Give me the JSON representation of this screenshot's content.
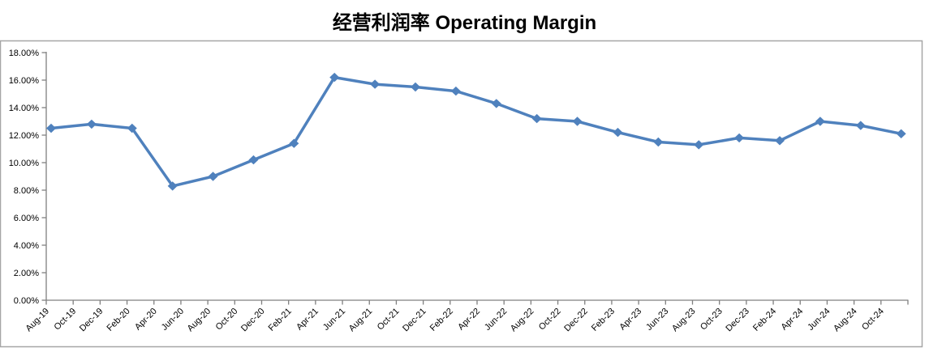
{
  "title": "经营利润率 Operating Margin",
  "colors": {
    "line": "#4F81BD",
    "marker": "#4F81BD",
    "axis": "#808080",
    "frame": "#A6A6A6",
    "text": "#000000",
    "background": "#FFFFFF"
  },
  "chart_data": {
    "type": "line",
    "title": "经营利润率 Operating Margin",
    "series_name": "Operating Margin",
    "points": [
      {
        "x": "Aug-19",
        "y": 12.5
      },
      {
        "x": "Nov-19",
        "y": 12.8
      },
      {
        "x": "Feb-20",
        "y": 12.5
      },
      {
        "x": "May-20",
        "y": 8.3
      },
      {
        "x": "Aug-20",
        "y": 9.0
      },
      {
        "x": "Nov-20",
        "y": 10.2
      },
      {
        "x": "Feb-21",
        "y": 11.4
      },
      {
        "x": "May-21",
        "y": 16.2
      },
      {
        "x": "Aug-21",
        "y": 15.7
      },
      {
        "x": "Nov-21",
        "y": 15.5
      },
      {
        "x": "Feb-22",
        "y": 15.2
      },
      {
        "x": "May-22",
        "y": 14.3
      },
      {
        "x": "Aug-22",
        "y": 13.2
      },
      {
        "x": "Nov-22",
        "y": 13.0
      },
      {
        "x": "Feb-23",
        "y": 12.2
      },
      {
        "x": "May-23",
        "y": 11.5
      },
      {
        "x": "Aug-23",
        "y": 11.3
      },
      {
        "x": "Nov-23",
        "y": 11.8
      },
      {
        "x": "Feb-24",
        "y": 11.6
      },
      {
        "x": "May-24",
        "y": 13.0
      },
      {
        "x": "Aug-24",
        "y": 12.7
      },
      {
        "x": "Nov-24",
        "y": 12.1
      }
    ],
    "values": [
      12.5,
      12.8,
      12.5,
      8.3,
      9.0,
      10.2,
      11.4,
      16.2,
      15.7,
      15.5,
      15.2,
      14.3,
      13.2,
      13.0,
      12.2,
      11.5,
      11.3,
      11.8,
      11.6,
      13.0,
      12.7,
      12.1
    ],
    "x_tick_labels": [
      "Aug-19",
      "Oct-19",
      "Dec-19",
      "Feb-20",
      "Apr-20",
      "Jun-20",
      "Aug-20",
      "Oct-20",
      "Dec-20",
      "Feb-21",
      "Apr-21",
      "Jun-21",
      "Aug-21",
      "Oct-21",
      "Dec-21",
      "Feb-22",
      "Apr-22",
      "Jun-22",
      "Aug-22",
      "Oct-22",
      "Dec-22",
      "Feb-23",
      "Apr-23",
      "Jun-23",
      "Aug-23",
      "Oct-23",
      "Dec-23",
      "Feb-24",
      "Apr-24",
      "Jun-24",
      "Aug-24",
      "Oct-24"
    ],
    "y_tick_labels": [
      "18.00%",
      "16.00%",
      "14.00%",
      "12.00%",
      "10.00%",
      "8.00%",
      "6.00%",
      "4.00%",
      "2.00%",
      "0.00%"
    ],
    "ylim": [
      0,
      18
    ],
    "y_unit": "percent",
    "y_tick_step": 2,
    "marker": "diamond",
    "grid": "off",
    "legend": "none",
    "x_label_rotation": -45,
    "data_interval": "quarterly",
    "axis_label_interval": "2 months"
  }
}
